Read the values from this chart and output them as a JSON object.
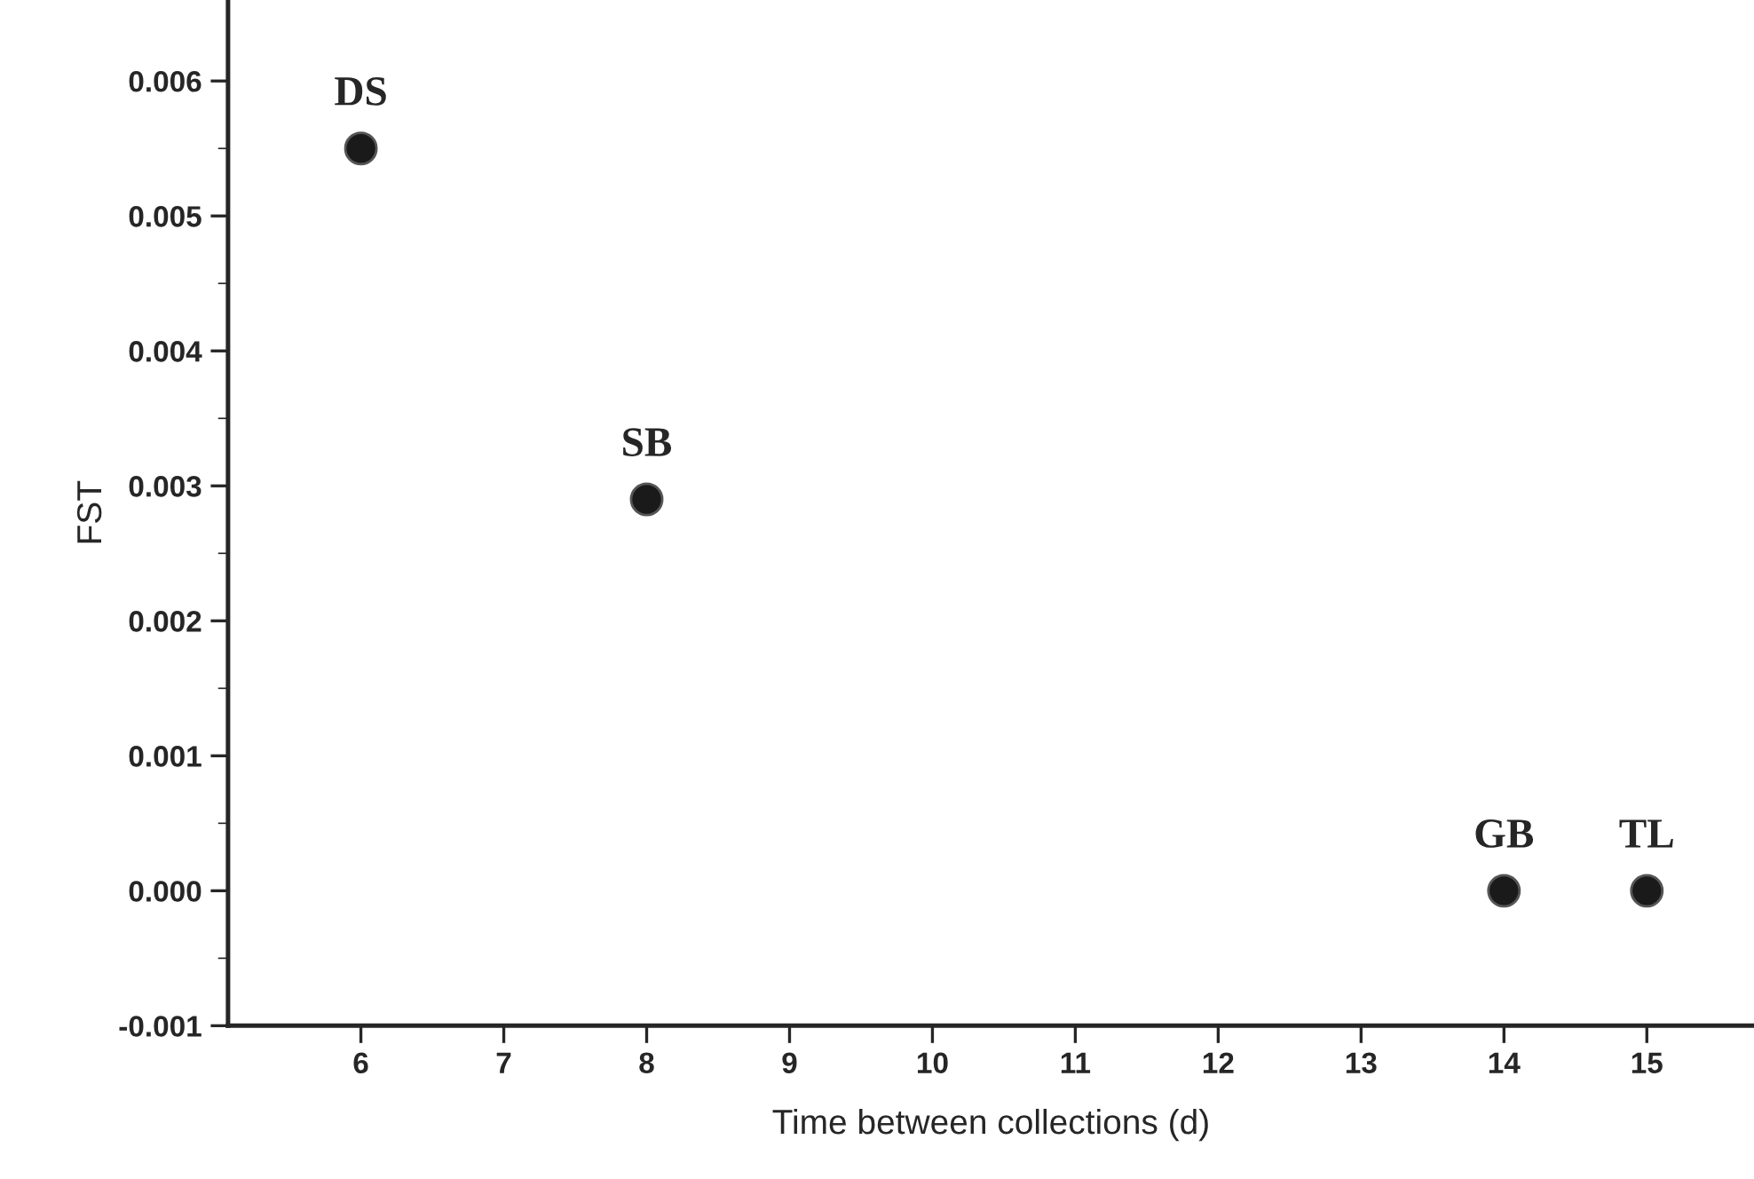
{
  "chart_data": {
    "type": "scatter",
    "xlabel": "Time between collections (d)",
    "ylabel": "FST",
    "x": [
      6,
      8,
      14,
      15
    ],
    "values": [
      0.0055,
      0.0029,
      0.0,
      0.0
    ],
    "color": "#1a1a1a",
    "marker": "circle",
    "annotations": [
      {
        "text": "DS",
        "x": 6,
        "y": 0.0055
      },
      {
        "text": "SB",
        "x": 8,
        "y": 0.0029
      },
      {
        "text": "GB",
        "x": 14,
        "y": 0.0
      },
      {
        "text": "TL",
        "x": 15,
        "y": 0.0
      }
    ],
    "xlim": [
      5.07,
      15.75
    ],
    "ylim": [
      -0.001,
      0.0066
    ],
    "xticks": [
      6,
      7,
      8,
      9,
      10,
      11,
      12,
      13,
      14,
      15
    ],
    "yticks": [
      {
        "value": -0.001,
        "label": "-0.001"
      },
      {
        "value": 0.0,
        "label": "0.000"
      },
      {
        "value": 0.001,
        "label": "0.001"
      },
      {
        "value": 0.002,
        "label": "0.002"
      },
      {
        "value": 0.003,
        "label": "0.003"
      },
      {
        "value": 0.004,
        "label": "0.004"
      },
      {
        "value": 0.005,
        "label": "0.005"
      },
      {
        "value": 0.006,
        "label": "0.006"
      }
    ],
    "grid": false,
    "legend": false
  }
}
